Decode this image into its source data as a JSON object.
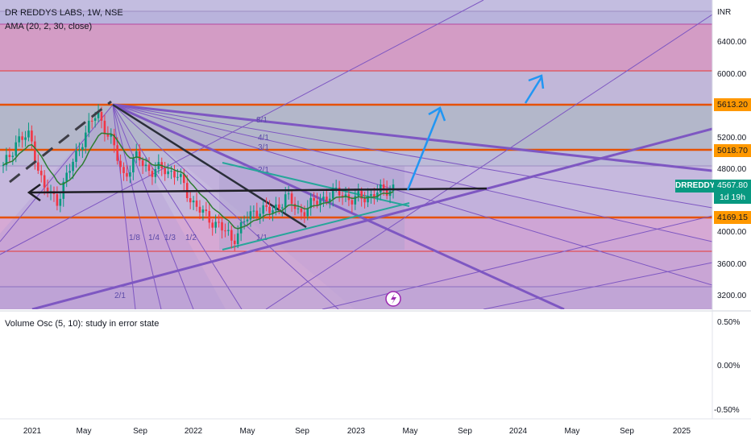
{
  "header": {
    "title": "DR REDDYS LABS, 1W, NSE",
    "indicator": "AMA (20, 2, 30, close)"
  },
  "oscillator": {
    "label": "Volume Osc (5, 10): study in error state",
    "ticks": [
      "0.50%",
      "0.00%",
      "-0.50%"
    ]
  },
  "price_axis": {
    "currency": "INR",
    "ticks": [
      "6400.00",
      "6000.00",
      "5200.00",
      "4800.00",
      "4000.00",
      "3600.00",
      "3200.00"
    ]
  },
  "price_tags": {
    "resistance_high": "5613.20",
    "resistance_mid": "5018.70",
    "support": "4169.15"
  },
  "last_price": {
    "symbol": "DRREDDY",
    "value": "4567.80",
    "countdown": "1d 19h"
  },
  "time_axis": {
    "ticks": [
      "2021",
      "May",
      "Sep",
      "2022",
      "May",
      "Sep",
      "2023",
      "May",
      "Sep",
      "2024",
      "May",
      "Sep",
      "2025"
    ]
  },
  "fan_labels": [
    "8/1",
    "4/1",
    "3/1",
    "2/1",
    "1/8",
    "1/4",
    "1/3",
    "1/2",
    "1/1",
    "2/1"
  ],
  "colors": {
    "up": "#089981",
    "down": "#f23645",
    "fan": "#7e57c2",
    "hline_orange": "#e65100",
    "arrow_blue": "#2196f3",
    "pennant": "#26a69a"
  },
  "chart_data": {
    "type": "candlestick",
    "symbol": "DRREDDY",
    "exchange": "NSE",
    "interval": "1W",
    "y_range": [
      3040,
      6900
    ],
    "horizontal_levels": [
      5613.2,
      5018.7,
      4169.15
    ],
    "last_close": 4567.8,
    "close_path": [
      {
        "date": "2020-11",
        "close": 4800
      },
      {
        "date": "2020-12",
        "close": 5150
      },
      {
        "date": "2021-01",
        "close": 5200
      },
      {
        "date": "2021-02",
        "close": 4550
      },
      {
        "date": "2021-03",
        "close": 4400
      },
      {
        "date": "2021-04",
        "close": 4800
      },
      {
        "date": "2021-05",
        "close": 5200
      },
      {
        "date": "2021-06",
        "close": 5500
      },
      {
        "date": "2021-07",
        "close": 5150
      },
      {
        "date": "2021-08",
        "close": 4700
      },
      {
        "date": "2021-09",
        "close": 4950
      },
      {
        "date": "2021-10",
        "close": 4750
      },
      {
        "date": "2021-11",
        "close": 4800
      },
      {
        "date": "2021-12",
        "close": 4700
      },
      {
        "date": "2022-01",
        "close": 4400
      },
      {
        "date": "2022-02",
        "close": 4200
      },
      {
        "date": "2022-03",
        "close": 4100
      },
      {
        "date": "2022-04",
        "close": 3900
      },
      {
        "date": "2022-05",
        "close": 4150
      },
      {
        "date": "2022-06",
        "close": 4300
      },
      {
        "date": "2022-07",
        "close": 4250
      },
      {
        "date": "2022-08",
        "close": 4450
      },
      {
        "date": "2022-09",
        "close": 4250
      },
      {
        "date": "2022-10",
        "close": 4350
      },
      {
        "date": "2022-11",
        "close": 4450
      },
      {
        "date": "2022-12",
        "close": 4500
      },
      {
        "date": "2023-01",
        "close": 4400
      },
      {
        "date": "2023-02",
        "close": 4450
      },
      {
        "date": "2023-03",
        "close": 4500
      },
      {
        "date": "2023-04",
        "close": 4567.8
      }
    ]
  }
}
